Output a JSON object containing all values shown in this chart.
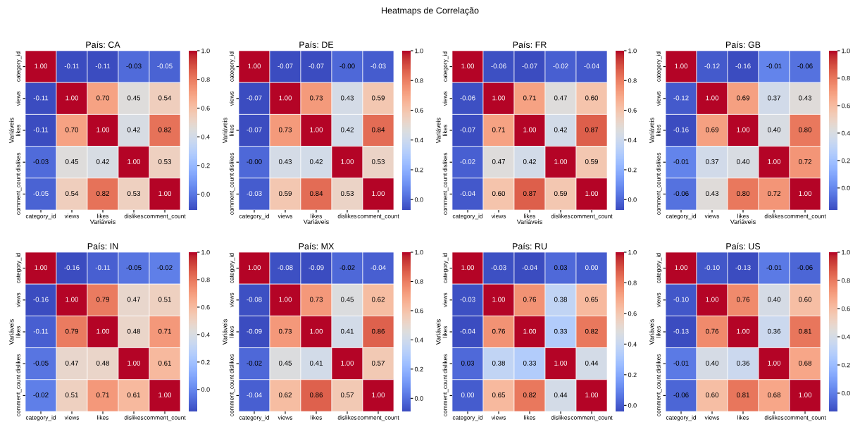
{
  "chart_data": [
    {
      "type": "heatmap",
      "title": "País: CA",
      "xlabel": "Variáveis",
      "ylabel": "Variáveis",
      "annotations": [
        "Heatmaps de Correlação"
      ],
      "data_labels": true,
      "grid": false,
      "categories": [
        "category_id",
        "views",
        "likes",
        "dislikes",
        "comment_count"
      ],
      "y_categories": [
        "category_id",
        "views",
        "likes",
        "dislikes",
        "comment_count"
      ],
      "cells": [
        [
          1.0,
          -0.11,
          -0.11,
          -0.03,
          -0.05
        ],
        [
          -0.11,
          1.0,
          0.7,
          0.45,
          0.54
        ],
        [
          -0.11,
          0.7,
          1.0,
          0.42,
          0.82
        ],
        [
          -0.03,
          0.45,
          0.42,
          1.0,
          0.53
        ],
        [
          -0.05,
          0.54,
          0.82,
          0.53,
          1.0
        ]
      ],
      "cell_labels": [
        [
          "1.00",
          "-0.11",
          "-0.11",
          "-0.03",
          "-0.05"
        ],
        [
          "-0.11",
          "1.00",
          "0.70",
          "0.45",
          "0.54"
        ],
        [
          "-0.11",
          "0.70",
          "1.00",
          "0.42",
          "0.82"
        ],
        [
          "-0.03",
          "0.45",
          "0.42",
          "1.00",
          "0.53"
        ],
        [
          "-0.05",
          "0.54",
          "0.82",
          "0.53",
          "1.00"
        ]
      ],
      "clim": [
        -0.11,
        1.0
      ],
      "cticks": [
        {
          "value": 0.0,
          "label": "0.0"
        },
        {
          "value": 0.2,
          "label": "0.2"
        },
        {
          "value": 0.4,
          "label": "0.4"
        },
        {
          "value": 0.6,
          "label": "0.6"
        },
        {
          "value": 0.8,
          "label": "0.8"
        },
        {
          "value": 1.0,
          "label": "1.0"
        }
      ]
    },
    {
      "type": "heatmap",
      "title": "País: DE",
      "xlabel": "Variáveis",
      "ylabel": "Variáveis",
      "data_labels": true,
      "grid": false,
      "categories": [
        "category_id",
        "views",
        "likes",
        "dislikes",
        "comment_count"
      ],
      "y_categories": [
        "category_id",
        "views",
        "likes",
        "dislikes",
        "comment_count"
      ],
      "cells": [
        [
          1.0,
          -0.07,
          -0.07,
          -0.0,
          -0.03
        ],
        [
          -0.07,
          1.0,
          0.73,
          0.43,
          0.59
        ],
        [
          -0.07,
          0.73,
          1.0,
          0.42,
          0.84
        ],
        [
          -0.0,
          0.43,
          0.42,
          1.0,
          0.53
        ],
        [
          -0.03,
          0.59,
          0.84,
          0.53,
          1.0
        ]
      ],
      "cell_labels": [
        [
          "1.00",
          "-0.07",
          "-0.07",
          "-0.00",
          "-0.03"
        ],
        [
          "-0.07",
          "1.00",
          "0.73",
          "0.43",
          "0.59"
        ],
        [
          "-0.07",
          "0.73",
          "1.00",
          "0.42",
          "0.84"
        ],
        [
          "-0.00",
          "0.43",
          "0.42",
          "1.00",
          "0.53"
        ],
        [
          "-0.03",
          "0.59",
          "0.84",
          "0.53",
          "1.00"
        ]
      ],
      "clim": [
        -0.07,
        1.0
      ],
      "cticks": [
        {
          "value": 0.0,
          "label": "0.0"
        },
        {
          "value": 0.2,
          "label": "0.2"
        },
        {
          "value": 0.4,
          "label": "0.4"
        },
        {
          "value": 0.6,
          "label": "0.6"
        },
        {
          "value": 0.8,
          "label": "0.8"
        },
        {
          "value": 1.0,
          "label": "1.0"
        }
      ]
    },
    {
      "type": "heatmap",
      "title": "País: FR",
      "xlabel": "Variáveis",
      "ylabel": "Variáveis",
      "data_labels": true,
      "grid": false,
      "categories": [
        "category_id",
        "views",
        "likes",
        "dislikes",
        "comment_count"
      ],
      "y_categories": [
        "category_id",
        "views",
        "likes",
        "dislikes",
        "comment_count"
      ],
      "cells": [
        [
          1.0,
          -0.06,
          -0.07,
          -0.02,
          -0.04
        ],
        [
          -0.06,
          1.0,
          0.71,
          0.47,
          0.6
        ],
        [
          -0.07,
          0.71,
          1.0,
          0.42,
          0.87
        ],
        [
          -0.02,
          0.47,
          0.42,
          1.0,
          0.59
        ],
        [
          -0.04,
          0.6,
          0.87,
          0.59,
          1.0
        ]
      ],
      "cell_labels": [
        [
          "1.00",
          "-0.06",
          "-0.07",
          "-0.02",
          "-0.04"
        ],
        [
          "-0.06",
          "1.00",
          "0.71",
          "0.47",
          "0.60"
        ],
        [
          "-0.07",
          "0.71",
          "1.00",
          "0.42",
          "0.87"
        ],
        [
          "-0.02",
          "0.47",
          "0.42",
          "1.00",
          "0.59"
        ],
        [
          "-0.04",
          "0.60",
          "0.87",
          "0.59",
          "1.00"
        ]
      ],
      "clim": [
        -0.07,
        1.0
      ],
      "cticks": [
        {
          "value": 0.0,
          "label": "0.0"
        },
        {
          "value": 0.2,
          "label": "0.2"
        },
        {
          "value": 0.4,
          "label": "0.4"
        },
        {
          "value": 0.6,
          "label": "0.6"
        },
        {
          "value": 0.8,
          "label": "0.8"
        },
        {
          "value": 1.0,
          "label": "1.0"
        }
      ]
    },
    {
      "type": "heatmap",
      "title": "País: GB",
      "xlabel": "Variáveis",
      "ylabel": "Variáveis",
      "data_labels": true,
      "grid": false,
      "categories": [
        "category_id",
        "views",
        "likes",
        "dislikes",
        "comment_count"
      ],
      "y_categories": [
        "category_id",
        "views",
        "likes",
        "dislikes",
        "comment_count"
      ],
      "cells": [
        [
          1.0,
          -0.12,
          -0.16,
          -0.01,
          -0.06
        ],
        [
          -0.12,
          1.0,
          0.69,
          0.37,
          0.43
        ],
        [
          -0.16,
          0.69,
          1.0,
          0.4,
          0.8
        ],
        [
          -0.01,
          0.37,
          0.4,
          1.0,
          0.72
        ],
        [
          -0.06,
          0.43,
          0.8,
          0.72,
          1.0
        ]
      ],
      "cell_labels": [
        [
          "1.00",
          "-0.12",
          "-0.16",
          "-0.01",
          "-0.06"
        ],
        [
          "-0.12",
          "1.00",
          "0.69",
          "0.37",
          "0.43"
        ],
        [
          "-0.16",
          "0.69",
          "1.00",
          "0.40",
          "0.80"
        ],
        [
          "-0.01",
          "0.37",
          "0.40",
          "1.00",
          "0.72"
        ],
        [
          "-0.06",
          "0.43",
          "0.80",
          "0.72",
          "1.00"
        ]
      ],
      "clim": [
        -0.16,
        1.0
      ],
      "cticks": [
        {
          "value": 0.0,
          "label": "0.0"
        },
        {
          "value": 0.2,
          "label": "0.2"
        },
        {
          "value": 0.4,
          "label": "0.4"
        },
        {
          "value": 0.6,
          "label": "0.6"
        },
        {
          "value": 0.8,
          "label": "0.8"
        },
        {
          "value": 1.0,
          "label": "1.0"
        }
      ]
    },
    {
      "type": "heatmap",
      "title": "País: IN",
      "ylabel": "Variáveis",
      "data_labels": true,
      "grid": false,
      "categories": [
        "category_id",
        "views",
        "likes",
        "dislikes",
        "comment_count"
      ],
      "y_categories": [
        "category_id",
        "views",
        "likes",
        "dislikes",
        "comment_count"
      ],
      "cells": [
        [
          1.0,
          -0.16,
          -0.11,
          -0.05,
          -0.02
        ],
        [
          -0.16,
          1.0,
          0.79,
          0.47,
          0.51
        ],
        [
          -0.11,
          0.79,
          1.0,
          0.48,
          0.71
        ],
        [
          -0.05,
          0.47,
          0.48,
          1.0,
          0.61
        ],
        [
          -0.02,
          0.51,
          0.71,
          0.61,
          1.0
        ]
      ],
      "cell_labels": [
        [
          "1.00",
          "-0.16",
          "-0.11",
          "-0.05",
          "-0.02"
        ],
        [
          "-0.16",
          "1.00",
          "0.79",
          "0.47",
          "0.51"
        ],
        [
          "-0.11",
          "0.79",
          "1.00",
          "0.48",
          "0.71"
        ],
        [
          "-0.05",
          "0.47",
          "0.48",
          "1.00",
          "0.61"
        ],
        [
          "-0.02",
          "0.51",
          "0.71",
          "0.61",
          "1.00"
        ]
      ],
      "clim": [
        -0.16,
        1.0
      ],
      "cticks": [
        {
          "value": 0.0,
          "label": "0.0"
        },
        {
          "value": 0.2,
          "label": "0.2"
        },
        {
          "value": 0.4,
          "label": "0.4"
        },
        {
          "value": 0.6,
          "label": "0.6"
        },
        {
          "value": 0.8,
          "label": "0.8"
        },
        {
          "value": 1.0,
          "label": "1.0"
        }
      ]
    },
    {
      "type": "heatmap",
      "title": "País: MX",
      "ylabel": "Variáveis",
      "data_labels": true,
      "grid": false,
      "categories": [
        "category_id",
        "views",
        "likes",
        "dislikes",
        "comment_count"
      ],
      "y_categories": [
        "category_id",
        "views",
        "likes",
        "dislikes",
        "comment_count"
      ],
      "cells": [
        [
          1.0,
          -0.08,
          -0.09,
          -0.02,
          -0.04
        ],
        [
          -0.08,
          1.0,
          0.73,
          0.45,
          0.62
        ],
        [
          -0.09,
          0.73,
          1.0,
          0.41,
          0.86
        ],
        [
          -0.02,
          0.45,
          0.41,
          1.0,
          0.57
        ],
        [
          -0.04,
          0.62,
          0.86,
          0.57,
          1.0
        ]
      ],
      "cell_labels": [
        [
          "1.00",
          "-0.08",
          "-0.09",
          "-0.02",
          "-0.04"
        ],
        [
          "-0.08",
          "1.00",
          "0.73",
          "0.45",
          "0.62"
        ],
        [
          "-0.09",
          "0.73",
          "1.00",
          "0.41",
          "0.86"
        ],
        [
          "-0.02",
          "0.45",
          "0.41",
          "1.00",
          "0.57"
        ],
        [
          "-0.04",
          "0.62",
          "0.86",
          "0.57",
          "1.00"
        ]
      ],
      "clim": [
        -0.09,
        1.0
      ],
      "cticks": [
        {
          "value": 0.0,
          "label": "0.0"
        },
        {
          "value": 0.2,
          "label": "0.2"
        },
        {
          "value": 0.4,
          "label": "0.4"
        },
        {
          "value": 0.6,
          "label": "0.6"
        },
        {
          "value": 0.8,
          "label": "0.8"
        },
        {
          "value": 1.0,
          "label": "1.0"
        }
      ]
    },
    {
      "type": "heatmap",
      "title": "País: RU",
      "ylabel": "Variáveis",
      "data_labels": true,
      "grid": false,
      "categories": [
        "category_id",
        "views",
        "likes",
        "dislikes",
        "comment_count"
      ],
      "y_categories": [
        "category_id",
        "views",
        "likes",
        "dislikes",
        "comment_count"
      ],
      "cells": [
        [
          1.0,
          -0.03,
          -0.04,
          0.03,
          0.0
        ],
        [
          -0.03,
          1.0,
          0.76,
          0.38,
          0.65
        ],
        [
          -0.04,
          0.76,
          1.0,
          0.33,
          0.82
        ],
        [
          0.03,
          0.38,
          0.33,
          1.0,
          0.44
        ],
        [
          0.0,
          0.65,
          0.82,
          0.44,
          1.0
        ]
      ],
      "cell_labels": [
        [
          "1.00",
          "-0.03",
          "-0.04",
          "0.03",
          "0.00"
        ],
        [
          "-0.03",
          "1.00",
          "0.76",
          "0.38",
          "0.65"
        ],
        [
          "-0.04",
          "0.76",
          "1.00",
          "0.33",
          "0.82"
        ],
        [
          "0.03",
          "0.38",
          "0.33",
          "1.00",
          "0.44"
        ],
        [
          "0.00",
          "0.65",
          "0.82",
          "0.44",
          "1.00"
        ]
      ],
      "clim": [
        -0.04,
        1.0
      ],
      "cticks": [
        {
          "value": 0.0,
          "label": "0.0"
        },
        {
          "value": 0.2,
          "label": "0.2"
        },
        {
          "value": 0.4,
          "label": "0.4"
        },
        {
          "value": 0.6,
          "label": "0.6"
        },
        {
          "value": 0.8,
          "label": "0.8"
        },
        {
          "value": 1.0,
          "label": "1.0"
        }
      ]
    },
    {
      "type": "heatmap",
      "title": "País: US",
      "ylabel": "Variáveis",
      "data_labels": true,
      "grid": false,
      "categories": [
        "category_id",
        "views",
        "likes",
        "dislikes",
        "comment_count"
      ],
      "y_categories": [
        "category_id",
        "views",
        "likes",
        "dislikes",
        "comment_count"
      ],
      "cells": [
        [
          1.0,
          -0.1,
          -0.13,
          -0.01,
          -0.06
        ],
        [
          -0.1,
          1.0,
          0.76,
          0.4,
          0.6
        ],
        [
          -0.13,
          0.76,
          1.0,
          0.36,
          0.81
        ],
        [
          -0.01,
          0.4,
          0.36,
          1.0,
          0.68
        ],
        [
          -0.06,
          0.6,
          0.81,
          0.68,
          1.0
        ]
      ],
      "cell_labels": [
        [
          "1.00",
          "-0.10",
          "-0.13",
          "-0.01",
          "-0.06"
        ],
        [
          "-0.10",
          "1.00",
          "0.76",
          "0.40",
          "0.60"
        ],
        [
          "-0.13",
          "0.76",
          "1.00",
          "0.36",
          "0.81"
        ],
        [
          "-0.01",
          "0.40",
          "0.36",
          "1.00",
          "0.68"
        ],
        [
          "-0.06",
          "0.60",
          "0.81",
          "0.68",
          "1.00"
        ]
      ],
      "clim": [
        -0.13,
        1.0
      ],
      "cticks": [
        {
          "value": 0.0,
          "label": "0.0"
        },
        {
          "value": 0.2,
          "label": "0.2"
        },
        {
          "value": 0.4,
          "label": "0.4"
        },
        {
          "value": 0.6,
          "label": "0.6"
        },
        {
          "value": 0.8,
          "label": "0.8"
        },
        {
          "value": 1.0,
          "label": "1.0"
        }
      ]
    }
  ]
}
